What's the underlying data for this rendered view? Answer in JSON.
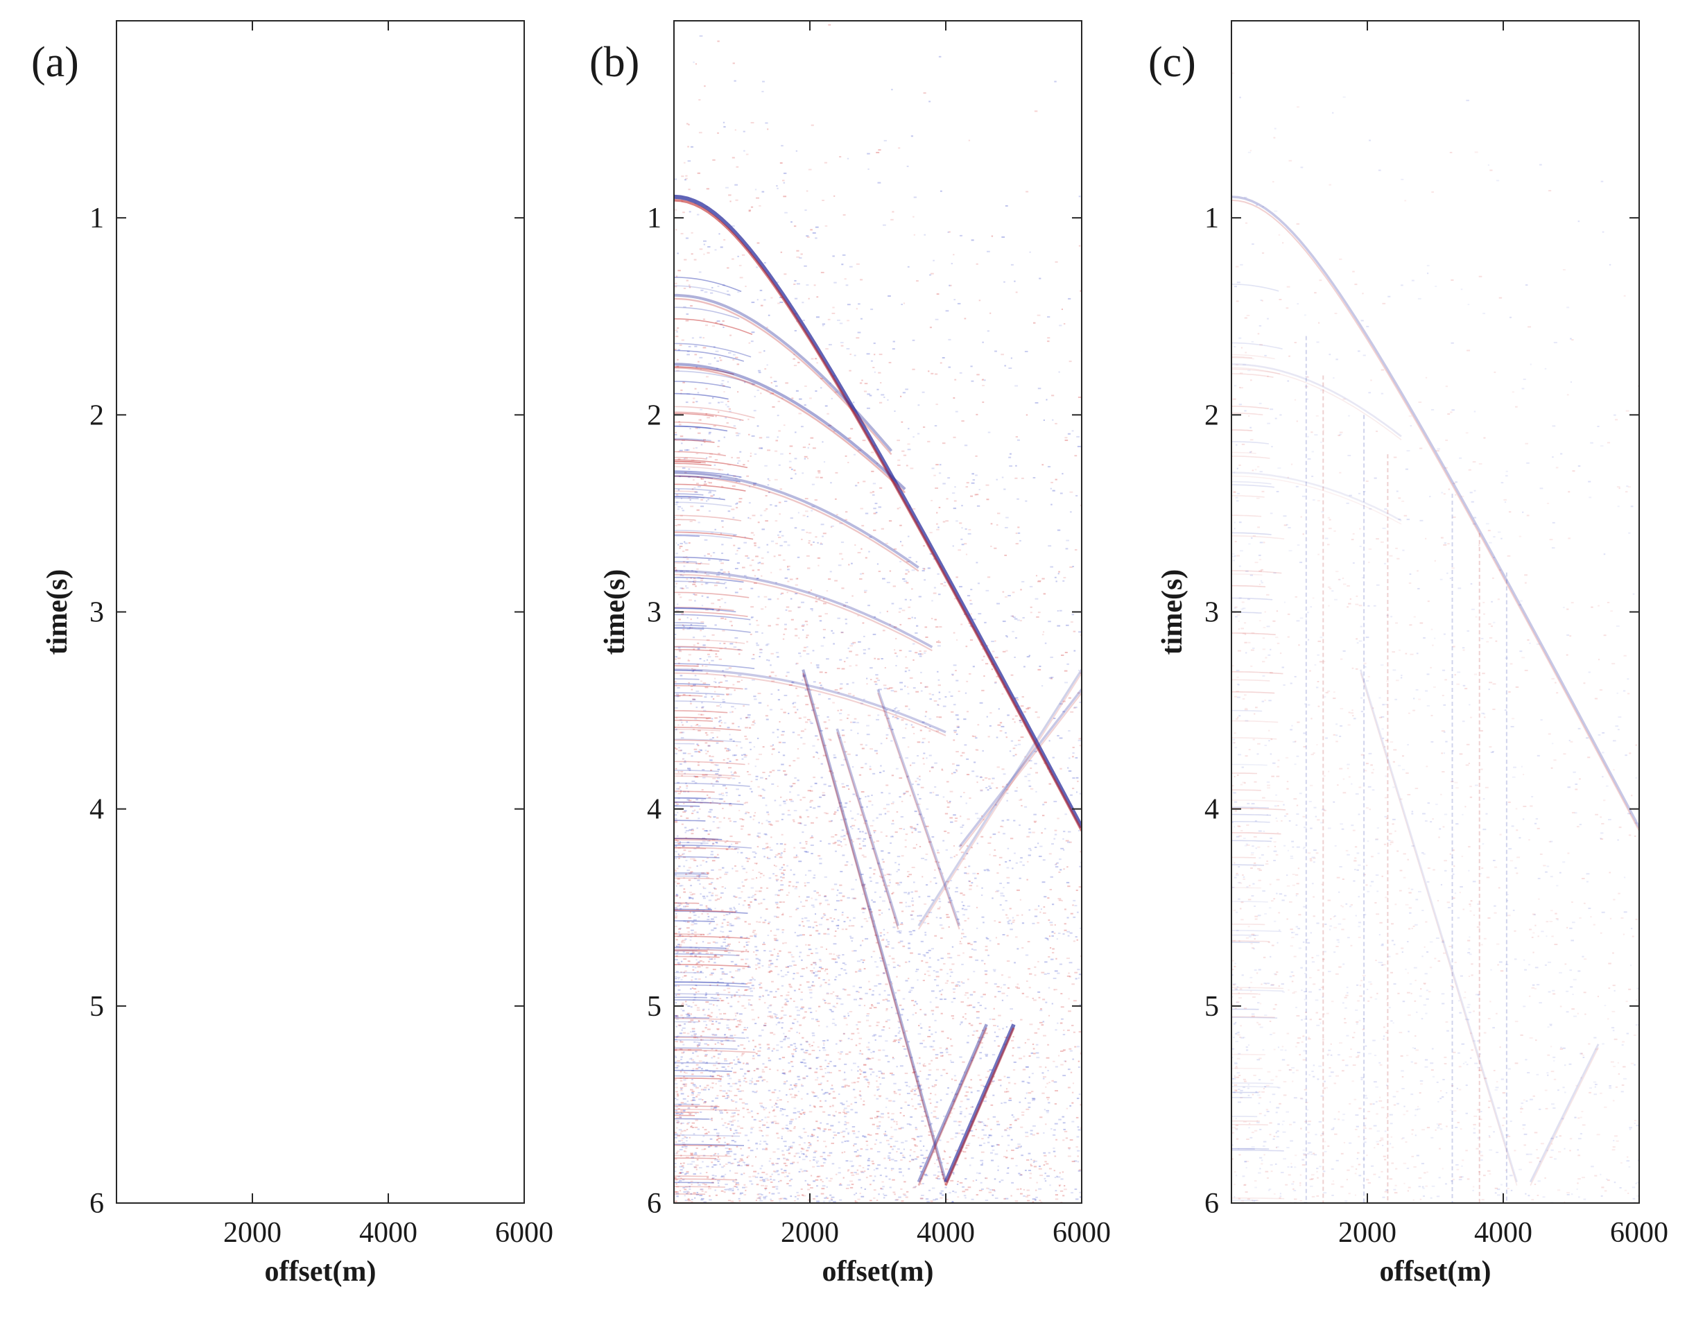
{
  "chart_data": [
    {
      "type": "heatmap",
      "panel_label": "(a)",
      "xlabel": "offset(m)",
      "ylabel": "time(s)",
      "xlim": [
        0,
        6000
      ],
      "ylim": [
        6,
        0
      ],
      "xticks": [
        2000,
        4000,
        6000
      ],
      "yticks": [
        1,
        2,
        3,
        4,
        5,
        6
      ],
      "grid": false,
      "colormap": "blue-white-red seismic",
      "content": "blank"
    },
    {
      "type": "heatmap",
      "panel_label": "(b)",
      "xlabel": "offset(m)",
      "ylabel": "time(s)",
      "xlim": [
        0,
        6000
      ],
      "ylim": [
        6,
        0
      ],
      "xticks": [
        2000,
        4000,
        6000
      ],
      "yticks": [
        1,
        2,
        3,
        4,
        5,
        6
      ],
      "grid": false,
      "colormap": "blue-white-red seismic",
      "content": "strong",
      "events": [
        {
          "kind": "hyperbola",
          "t0": 0.9,
          "v": 1500,
          "x_max": 6000,
          "amp": 1.0
        },
        {
          "kind": "hyperbola",
          "t0": 1.4,
          "v": 1900,
          "x_max": 3200,
          "amp": 0.5
        },
        {
          "kind": "hyperbola",
          "t0": 1.75,
          "v": 2100,
          "x_max": 3400,
          "amp": 0.55
        },
        {
          "kind": "hyperbola",
          "t0": 2.3,
          "v": 2300,
          "x_max": 3600,
          "amp": 0.45
        },
        {
          "kind": "hyperbola",
          "t0": 2.8,
          "v": 2500,
          "x_max": 3800,
          "amp": 0.4
        },
        {
          "kind": "hyperbola",
          "t0": 3.3,
          "v": 2700,
          "x_max": 4000,
          "amp": 0.35
        },
        {
          "kind": "linear",
          "x1": 1900,
          "t1": 3.3,
          "x2": 4000,
          "t2": 5.9,
          "amp": 0.5
        },
        {
          "kind": "linear",
          "x1": 2400,
          "t1": 3.6,
          "x2": 3300,
          "t2": 4.6,
          "amp": 0.4
        },
        {
          "kind": "linear",
          "x1": 3000,
          "t1": 3.4,
          "x2": 4200,
          "t2": 4.6,
          "amp": 0.35
        },
        {
          "kind": "linear",
          "x1": 4000,
          "t1": 5.9,
          "x2": 5000,
          "t2": 5.1,
          "amp": 0.9
        },
        {
          "kind": "linear",
          "x1": 3600,
          "t1": 5.9,
          "x2": 4600,
          "t2": 5.1,
          "amp": 0.6
        },
        {
          "kind": "linear",
          "x1": 4200,
          "t1": 4.2,
          "x2": 6000,
          "t2": 3.4,
          "amp": 0.35
        },
        {
          "kind": "linear",
          "x1": 3600,
          "t1": 4.6,
          "x2": 6000,
          "t2": 3.3,
          "amp": 0.3
        }
      ]
    },
    {
      "type": "heatmap",
      "panel_label": "(c)",
      "xlabel": "offset(m)",
      "ylabel": "time(s)",
      "xlim": [
        0,
        6000
      ],
      "ylim": [
        6,
        0
      ],
      "xticks": [
        2000,
        4000,
        6000
      ],
      "yticks": [
        1,
        2,
        3,
        4,
        5,
        6
      ],
      "grid": false,
      "colormap": "blue-white-red seismic",
      "content": "weak",
      "events": [
        {
          "kind": "hyperbola",
          "t0": 0.9,
          "v": 1500,
          "x_max": 6000,
          "amp": 0.35
        },
        {
          "kind": "hyperbola",
          "t0": 1.75,
          "v": 2100,
          "x_max": 2500,
          "amp": 0.15
        },
        {
          "kind": "hyperbola",
          "t0": 2.3,
          "v": 2300,
          "x_max": 2500,
          "amp": 0.12
        },
        {
          "kind": "linear",
          "x1": 1900,
          "t1": 3.3,
          "x2": 4200,
          "t2": 5.9,
          "amp": 0.15
        },
        {
          "kind": "linear",
          "x1": 4400,
          "t1": 5.9,
          "x2": 5400,
          "t2": 5.2,
          "amp": 0.2
        }
      ],
      "vertical_traces": [
        1100,
        1350,
        1950,
        2300,
        3250,
        3650,
        4050
      ]
    }
  ]
}
